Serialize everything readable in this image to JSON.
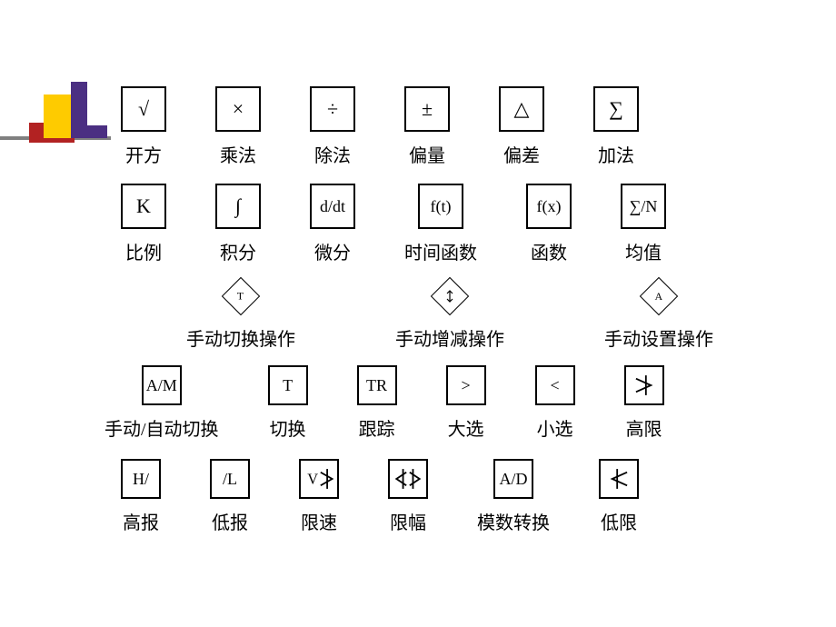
{
  "styling": {
    "page_bg": "#ffffff",
    "box_border": "#000000",
    "box_border_width": 2,
    "label_color": "#000000",
    "label_fontsize": 20,
    "symbol_fontsize": 22,
    "symbol_fontsize_sm": 18,
    "deco_yellow": "#fecb00",
    "deco_purple": "#4b2f82",
    "deco_red": "#b22222",
    "deco_gray": "#808080",
    "box_std_w": 50,
    "box_std_h": 50,
    "diamond_size": 30
  },
  "rows": {
    "r1": {
      "gap": 54,
      "left_pad": 18,
      "items": [
        {
          "symbol": "√",
          "label": "开方"
        },
        {
          "symbol": "×",
          "label": "乘法"
        },
        {
          "symbol": "÷",
          "label": "除法"
        },
        {
          "symbol": "±",
          "label": "偏量"
        },
        {
          "symbol": "△",
          "label": "偏差"
        },
        {
          "symbol": "∑",
          "label": "加法"
        }
      ]
    },
    "r2": {
      "gap": 54,
      "left_pad": 18,
      "items": [
        {
          "symbol": "K",
          "label": "比例"
        },
        {
          "symbol": "∫",
          "label": "积分"
        },
        {
          "symbol": "d/dt",
          "label": "微分"
        },
        {
          "symbol": "f(t)",
          "label": "时间函数"
        },
        {
          "symbol": "f(x)",
          "label": "函数"
        },
        {
          "symbol": "∑/N",
          "label": "均值"
        }
      ]
    },
    "r3": {
      "left_pad": 90,
      "gap": 110,
      "items": [
        {
          "symbol": "T",
          "label": "手动切换操作",
          "shape": "diamond"
        },
        {
          "symbol": "updown",
          "label": "手动增减操作",
          "shape": "diamond"
        },
        {
          "symbol": "A",
          "label": "手动设置操作",
          "shape": "diamond"
        }
      ]
    },
    "r4": {
      "gap": 54,
      "left_pad": 0,
      "items": [
        {
          "symbol": "A/M",
          "label": "手动/自动切换"
        },
        {
          "symbol": "T",
          "label": "切换"
        },
        {
          "symbol": "TR",
          "label": "跟踪"
        },
        {
          "symbol": ">",
          "label": "大选"
        },
        {
          "symbol": "<",
          "label": "小选"
        },
        {
          "symbol": "gt-slash",
          "label": "高限",
          "icon": true
        }
      ]
    },
    "r5": {
      "gap": 54,
      "left_pad": 18,
      "items": [
        {
          "symbol": "H/",
          "label": "高报"
        },
        {
          "symbol": "/L",
          "label": "低报"
        },
        {
          "symbol": "v-gt-slash",
          "label": "限速",
          "icon": true
        },
        {
          "symbol": "ltgt-slash",
          "label": "限幅",
          "icon": true
        },
        {
          "symbol": "A/D",
          "label": "模数转换"
        },
        {
          "symbol": "lt-slash",
          "label": "低限",
          "icon": true
        }
      ]
    }
  }
}
